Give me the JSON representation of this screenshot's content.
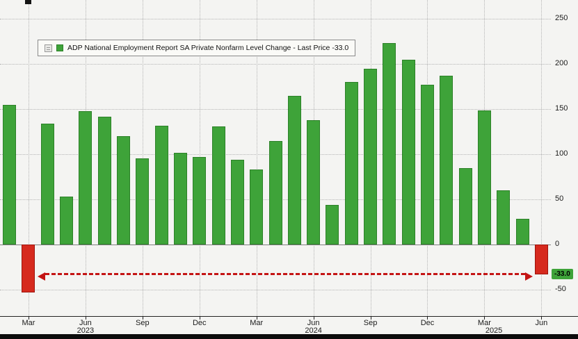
{
  "chart_data": {
    "type": "bar",
    "title": "ADP National Employment Report SA Private Nonfarm Level Change",
    "legend_label": "ADP National Employment Report SA Private Nonfarm Level Change - Last Price -33.0",
    "last_price": -33.0,
    "x": [
      "Feb 2023",
      "Mar 2023",
      "Apr 2023",
      "May 2023",
      "Jun 2023",
      "Jul 2023",
      "Aug 2023",
      "Sep 2023",
      "Oct 2023",
      "Nov 2023",
      "Dec 2023",
      "Jan 2024",
      "Feb 2024",
      "Mar 2024",
      "Apr 2024",
      "May 2024",
      "Jun 2024",
      "Jul 2024",
      "Aug 2024",
      "Sep 2024",
      "Oct 2024",
      "Nov 2024",
      "Dec 2024",
      "Jan 2025",
      "Feb 2025",
      "Mar 2025",
      "Apr 2025",
      "May 2025",
      "Jun 2025"
    ],
    "values": [
      155,
      -53,
      134,
      53,
      148,
      142,
      120,
      96,
      132,
      102,
      97,
      131,
      94,
      83,
      115,
      165,
      138,
      44,
      180,
      195,
      223,
      205,
      177,
      187,
      85,
      149,
      60,
      29,
      -33
    ],
    "yticks": [
      250,
      200,
      150,
      100,
      50,
      0,
      -50
    ],
    "ylim": [
      -79,
      271
    ],
    "grid": "dotted",
    "legend_position": "top-left",
    "xticks": [
      {
        "index": 1,
        "label": "Mar"
      },
      {
        "index": 4,
        "label": "Jun"
      },
      {
        "index": 7,
        "label": "Sep"
      },
      {
        "index": 10,
        "label": "Dec"
      },
      {
        "index": 13,
        "label": "Mar"
      },
      {
        "index": 16,
        "label": "Jun"
      },
      {
        "index": 19,
        "label": "Sep"
      },
      {
        "index": 22,
        "label": "Dec"
      },
      {
        "index": 25,
        "label": "Mar"
      },
      {
        "index": 28,
        "label": "Jun"
      }
    ],
    "year_labels": [
      {
        "index": 4,
        "label": "2023"
      },
      {
        "index": 16,
        "label": "2024"
      },
      {
        "index": 25.5,
        "label": "2025"
      }
    ],
    "annotation": {
      "shape": "double-headed-dashed-arrow",
      "value_level": -33,
      "from_index": 1,
      "to_index": 28,
      "color": "#c41414"
    },
    "last_price_badge": {
      "text": "-33.0",
      "bg": "#3ea339",
      "text_color": "#000000"
    },
    "colors": {
      "positive": "#3ea339",
      "positive_border": "#2c8128",
      "negative": "#d62a1e",
      "negative_border": "#9c130b",
      "background": "#f4f4f2",
      "grid": "#b4b4b4",
      "zero_line": "#808080",
      "axis_text": "#1a1a1a"
    }
  }
}
